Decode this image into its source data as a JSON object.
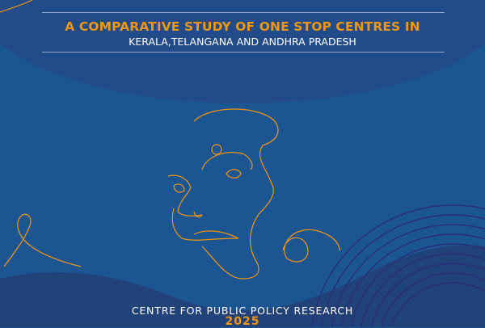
{
  "cover": {
    "title": "A COMPARATIVE STUDY OF ONE STOP CENTRES IN",
    "subtitle": "KERALA,TELANGANA AND ANDHRA PRADESH",
    "organization": "CENTRE FOR PUBLIC POLICY RESEARCH",
    "year": "2025"
  },
  "colors": {
    "background": "#1b5592",
    "dark_band": "#22427a",
    "accent_orange": "#f0960f",
    "rings": "#2a2f7a"
  },
  "illustration": "line-art-woman-face"
}
